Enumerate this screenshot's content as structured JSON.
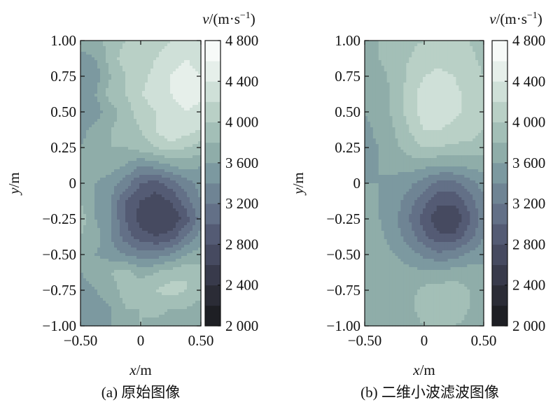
{
  "figure": {
    "panels": [
      {
        "caption": "(a) 原始图像",
        "xlabel_var": "x",
        "xlabel_unit": "/m",
        "ylabel_var": "y",
        "ylabel_unit": "/m",
        "colorbar_label_var": "v",
        "colorbar_label_unit": "/(m·s",
        "colorbar_label_exp": "−1",
        "colorbar_label_close": ")"
      },
      {
        "caption": "(b) 二维小波滤波图像",
        "xlabel_var": "x",
        "xlabel_unit": "/m",
        "ylabel_var": "y",
        "ylabel_unit": "/m",
        "colorbar_label_var": "v",
        "colorbar_label_unit": "/(m·s",
        "colorbar_label_exp": "−1",
        "colorbar_label_close": ")"
      }
    ]
  },
  "chart_data": [
    {
      "type": "heatmap",
      "style": "filled-contour",
      "title": "",
      "caption": "(a) 原始图像",
      "xlabel": "x/m",
      "ylabel": "y/m",
      "colorbar_label": "v/(m·s−1)",
      "xlim": [
        -0.5,
        0.5
      ],
      "ylim": [
        -1.0,
        1.0
      ],
      "x_ticks": [
        -0.5,
        0,
        0.5
      ],
      "x_tick_labels": [
        "−0.50",
        "0",
        "0.50"
      ],
      "y_ticks": [
        1.0,
        0.75,
        0.5,
        0.25,
        0,
        -0.25,
        -0.5,
        -0.75,
        -1.0
      ],
      "y_tick_labels": [
        "1.00",
        "0.75",
        "0.50",
        "0.25",
        "0",
        "−0.25",
        "−0.50",
        "−0.75",
        "−1.00"
      ],
      "colorbar_range": [
        2000,
        4800
      ],
      "colorbar_ticks": [
        4800,
        4400,
        4000,
        3600,
        3200,
        2800,
        2400,
        2000
      ],
      "colorbar_tick_labels": [
        "4 800",
        "4 400",
        "4 000",
        "3 600",
        "3 200",
        "2 800",
        "2 400",
        "2 000"
      ],
      "grid_x": [
        -0.5,
        -0.375,
        -0.25,
        -0.125,
        0.0,
        0.125,
        0.25,
        0.375,
        0.5
      ],
      "grid_y": [
        1.0,
        0.875,
        0.75,
        0.625,
        0.5,
        0.375,
        0.25,
        0.125,
        0.0,
        -0.125,
        -0.25,
        -0.375,
        -0.5,
        -0.625,
        -0.75,
        -0.875,
        -1.0
      ],
      "values": [
        [
          3800,
          3700,
          3900,
          4000,
          4000,
          4100,
          4200,
          4300,
          4200
        ],
        [
          3500,
          3600,
          3900,
          4100,
          4000,
          4200,
          4300,
          4400,
          4300
        ],
        [
          3400,
          3500,
          3800,
          4000,
          4100,
          4300,
          4400,
          4500,
          4400
        ],
        [
          3500,
          3600,
          3900,
          4000,
          4200,
          4300,
          4400,
          4500,
          4500
        ],
        [
          3400,
          3500,
          3700,
          3900,
          4100,
          4200,
          4300,
          4400,
          4300
        ],
        [
          3500,
          3700,
          3800,
          3900,
          4000,
          4200,
          4400,
          4300,
          4200
        ],
        [
          3600,
          3800,
          3800,
          3800,
          3900,
          4000,
          4100,
          4000,
          3900
        ],
        [
          3600,
          3700,
          3700,
          3600,
          3400,
          3500,
          3600,
          3700,
          3600
        ],
        [
          3700,
          3600,
          3500,
          3300,
          3000,
          2900,
          3100,
          3300,
          3500
        ],
        [
          3800,
          3600,
          3400,
          3000,
          2800,
          2700,
          2800,
          3100,
          3400
        ],
        [
          3900,
          3600,
          3400,
          3000,
          2700,
          2600,
          2600,
          2900,
          3300
        ],
        [
          3800,
          3700,
          3400,
          3100,
          2900,
          2800,
          2900,
          3200,
          3500
        ],
        [
          3700,
          3600,
          3500,
          3400,
          3300,
          3300,
          3400,
          3600,
          3700
        ],
        [
          3600,
          3700,
          3800,
          3900,
          3700,
          3800,
          3900,
          4000,
          3900
        ],
        [
          3500,
          3600,
          3700,
          3900,
          4000,
          4000,
          4100,
          4000,
          3900
        ],
        [
          3500,
          3500,
          3600,
          3800,
          3800,
          3900,
          3800,
          3800,
          3700
        ],
        [
          3400,
          3500,
          3600,
          3700,
          3800,
          3700,
          3700,
          3600,
          3600
        ]
      ]
    },
    {
      "type": "heatmap",
      "style": "filled-contour",
      "title": "",
      "caption": "(b) 二维小波滤波图像",
      "xlabel": "x/m",
      "ylabel": "y/m",
      "colorbar_label": "v/(m·s−1)",
      "xlim": [
        -0.5,
        0.5
      ],
      "ylim": [
        -1.0,
        1.0
      ],
      "x_ticks": [
        -0.5,
        0,
        0.5
      ],
      "x_tick_labels": [
        "−0.50",
        "0",
        "0.50"
      ],
      "y_ticks": [
        1.0,
        0.75,
        0.5,
        0.25,
        0,
        -0.25,
        -0.5,
        -0.75,
        -1.0
      ],
      "y_tick_labels": [
        "1.00",
        "0.75",
        "0.50",
        "0.25",
        "0",
        "−0.25",
        "−0.50",
        "−0.75",
        "−1.00"
      ],
      "colorbar_range": [
        2000,
        4800
      ],
      "colorbar_ticks": [
        4800,
        4400,
        4000,
        3600,
        3200,
        2800,
        2400,
        2000
      ],
      "colorbar_tick_labels": [
        "4 800",
        "4 400",
        "4 000",
        "3 600",
        "3 200",
        "2 800",
        "2 400",
        "2 000"
      ],
      "grid_x": [
        -0.5,
        -0.375,
        -0.25,
        -0.125,
        0.0,
        0.125,
        0.25,
        0.375,
        0.5
      ],
      "grid_y": [
        1.0,
        0.875,
        0.75,
        0.625,
        0.5,
        0.375,
        0.25,
        0.125,
        0.0,
        -0.125,
        -0.25,
        -0.375,
        -0.5,
        -0.625,
        -0.75,
        -0.875,
        -1.0
      ],
      "values": [
        [
          3800,
          3800,
          3900,
          3950,
          4000,
          4000,
          4000,
          4000,
          3900
        ],
        [
          3750,
          3800,
          3900,
          4000,
          4100,
          4150,
          4100,
          4050,
          3950
        ],
        [
          3700,
          3750,
          3850,
          4050,
          4200,
          4250,
          4200,
          4100,
          4000
        ],
        [
          3650,
          3700,
          3850,
          4100,
          4300,
          4300,
          4250,
          4150,
          4050
        ],
        [
          3600,
          3700,
          3850,
          4100,
          4300,
          4300,
          4250,
          4150,
          4050
        ],
        [
          3550,
          3650,
          3800,
          4000,
          4200,
          4200,
          4150,
          4100,
          4000
        ],
        [
          3550,
          3600,
          3750,
          3900,
          4000,
          4000,
          3950,
          3950,
          3900
        ],
        [
          3550,
          3600,
          3650,
          3700,
          3650,
          3600,
          3600,
          3650,
          3700
        ],
        [
          3600,
          3600,
          3550,
          3450,
          3300,
          3150,
          3150,
          3300,
          3500
        ],
        [
          3650,
          3600,
          3500,
          3300,
          3050,
          2850,
          2850,
          3100,
          3350
        ],
        [
          3700,
          3600,
          3450,
          3200,
          2900,
          2650,
          2600,
          2950,
          3300
        ],
        [
          3750,
          3650,
          3500,
          3300,
          3050,
          2850,
          2850,
          3100,
          3400
        ],
        [
          3800,
          3700,
          3600,
          3500,
          3350,
          3250,
          3300,
          3450,
          3550
        ],
        [
          3800,
          3750,
          3700,
          3650,
          3650,
          3650,
          3700,
          3700,
          3650
        ],
        [
          3750,
          3700,
          3700,
          3750,
          3850,
          3900,
          3900,
          3800,
          3700
        ],
        [
          3700,
          3650,
          3650,
          3750,
          3900,
          4000,
          3950,
          3800,
          3700
        ],
        [
          3650,
          3600,
          3600,
          3700,
          3800,
          3850,
          3800,
          3750,
          3650
        ]
      ]
    }
  ],
  "colors": {
    "palette_low_to_high": [
      "#1e1f24",
      "#2b2c36",
      "#383a4b",
      "#464a60",
      "#545b74",
      "#637087",
      "#6f8494",
      "#7c99a0",
      "#8fada9",
      "#a3bfb7",
      "#b9d0c6",
      "#cfe0d8",
      "#e6efea",
      "#f7faf8"
    ]
  }
}
